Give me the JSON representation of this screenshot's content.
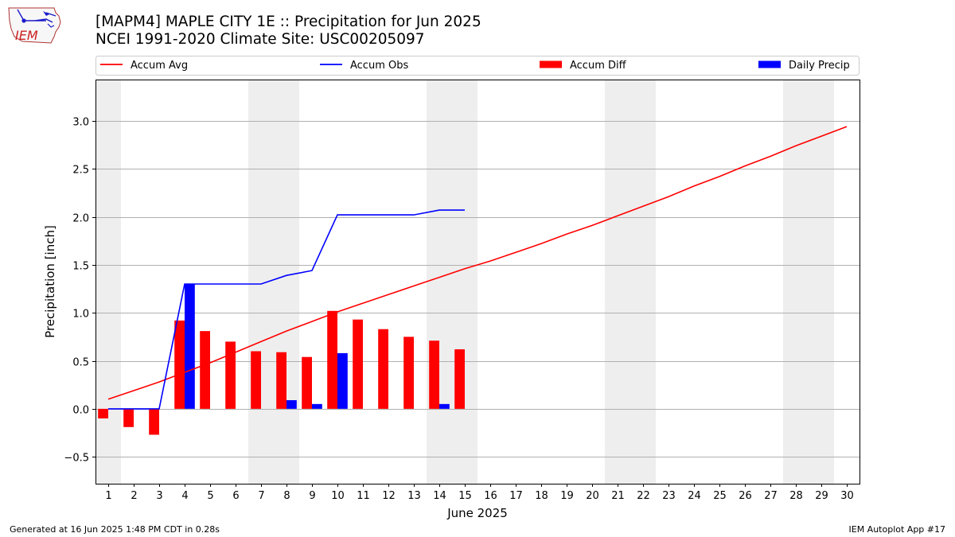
{
  "logo": {
    "text": "IEM"
  },
  "header": {
    "title_line1": "[MAPM4] MAPLE CITY 1E :: Precipitation for Jun 2025",
    "title_line2": "NCEI 1991-2020 Climate Site: USC00205097"
  },
  "footer": {
    "left": "Generated at 16 Jun 2025 1:48 PM CDT in 0.28s",
    "right": "IEM Autoplot App #17"
  },
  "chart_data": {
    "type": "bar",
    "xlabel": "June 2025",
    "ylabel": "Precipitation [inch]",
    "xlim": [
      0.5,
      30.5
    ],
    "ylim": [
      -0.78,
      3.43
    ],
    "yticks": [
      -0.5,
      0.0,
      0.5,
      1.0,
      1.5,
      2.0,
      2.5,
      3.0
    ],
    "ytick_labels": [
      "−0.5",
      "0.0",
      "0.5",
      "1.0",
      "1.5",
      "2.0",
      "2.5",
      "3.0"
    ],
    "x": [
      1,
      2,
      3,
      4,
      5,
      6,
      7,
      8,
      9,
      10,
      11,
      12,
      13,
      14,
      15,
      16,
      17,
      18,
      19,
      20,
      21,
      22,
      23,
      24,
      25,
      26,
      27,
      28,
      29,
      30
    ],
    "xtick_labels": [
      "1",
      "2",
      "3",
      "4",
      "5",
      "6",
      "7",
      "8",
      "9",
      "10",
      "11",
      "12",
      "13",
      "14",
      "15",
      "16",
      "17",
      "18",
      "19",
      "20",
      "21",
      "22",
      "23",
      "24",
      "25",
      "26",
      "27",
      "28",
      "29",
      "30"
    ],
    "grid": "horizontal",
    "legend_position": "top",
    "weekend_bands": [
      [
        0.5,
        1.5
      ],
      [
        6.5,
        8.5
      ],
      [
        13.5,
        15.5
      ],
      [
        20.5,
        22.5
      ],
      [
        27.5,
        29.5
      ]
    ],
    "band_color": "#eeeeee",
    "series": [
      {
        "name": "Accum Avg",
        "kind": "line",
        "color": "#ff0000",
        "values": [
          0.1,
          0.19,
          0.28,
          0.38,
          0.48,
          0.59,
          0.7,
          0.81,
          0.91,
          1.01,
          1.1,
          1.19,
          1.28,
          1.37,
          1.46,
          1.54,
          1.63,
          1.72,
          1.82,
          1.91,
          2.01,
          2.11,
          2.21,
          2.32,
          2.42,
          2.53,
          2.63,
          2.74,
          2.84,
          2.94
        ]
      },
      {
        "name": "Accum Obs",
        "kind": "line",
        "color": "#0000ff",
        "values": [
          0.0,
          0.0,
          0.0,
          1.3,
          1.3,
          1.3,
          1.3,
          1.39,
          1.44,
          2.02,
          2.02,
          2.02,
          2.02,
          2.07,
          2.07,
          null,
          null,
          null,
          null,
          null,
          null,
          null,
          null,
          null,
          null,
          null,
          null,
          null,
          null,
          null
        ]
      },
      {
        "name": "Accum Diff",
        "kind": "bar",
        "color": "#ff0000",
        "offset": "left",
        "values": [
          -0.1,
          -0.19,
          -0.27,
          0.92,
          0.81,
          0.7,
          0.6,
          0.59,
          0.54,
          1.02,
          0.93,
          0.83,
          0.75,
          0.71,
          0.62,
          null,
          null,
          null,
          null,
          null,
          null,
          null,
          null,
          null,
          null,
          null,
          null,
          null,
          null,
          null
        ]
      },
      {
        "name": "Daily Precip",
        "kind": "bar",
        "color": "#0000ff",
        "offset": "right",
        "values": [
          0.0,
          0.0,
          0.0,
          1.3,
          0.0,
          0.0,
          0.0,
          0.09,
          0.05,
          0.58,
          0.0,
          0.0,
          0.0,
          0.05,
          0.0,
          null,
          null,
          null,
          null,
          null,
          null,
          null,
          null,
          null,
          null,
          null,
          null,
          null,
          null,
          null
        ]
      }
    ]
  }
}
